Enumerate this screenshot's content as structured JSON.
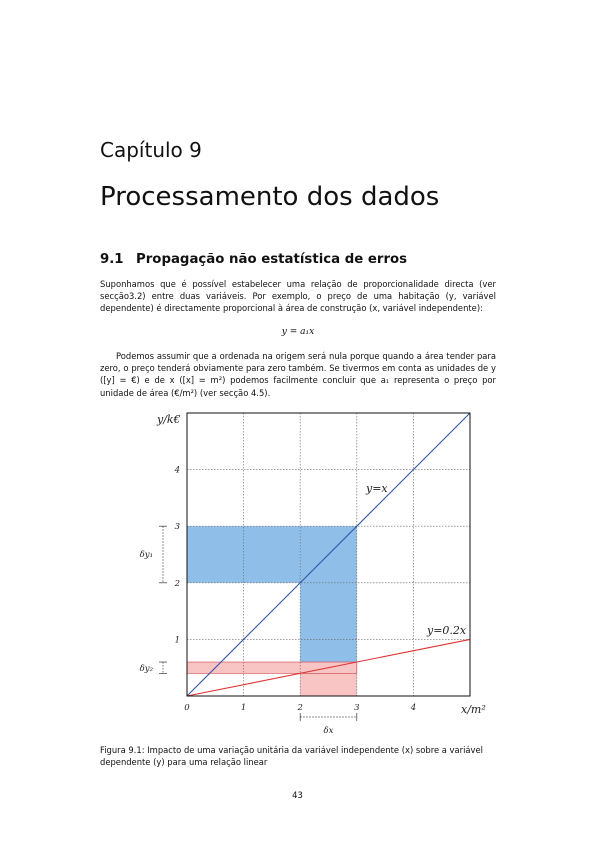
{
  "chapter": {
    "label": "Capítulo 9",
    "title": "Processamento dos dados"
  },
  "section": {
    "number": "9.1",
    "title": "Propagação não estatística de erros"
  },
  "paragraphs": {
    "p1": "Suponhamos que é possível estabelecer uma relação de proporcionalidade directa (ver secção3.2) entre duas variáveis. Por exemplo, o preço de uma habitação (y, variável dependente) é directamente proporcional à área de construção (x, variável independente):",
    "equation": "y = a₁x",
    "p2": "Podemos assumir que a ordenada na origem será nula porque quando a área tender para zero, o preço tenderá obviamente para zero também. Se tivermos em conta as unidades de y ([y] = €) e de x ([x] = m²) podemos facilmente concluir que a₁ representa o preço por unidade de área (€/m²) (ver secção 4.5)."
  },
  "figure": {
    "caption": "Figura 9.1: Impacto de uma variação unitária da variável independente (x) sobre a variável dependente (y) para uma relação linear"
  },
  "chart_data": {
    "type": "line",
    "xlabel": "x/m²",
    "ylabel": "y/k€",
    "xlim": [
      0,
      5
    ],
    "ylim": [
      0,
      5
    ],
    "x_ticks": [
      "0",
      "1",
      "2",
      "3",
      "4"
    ],
    "y_ticks": [
      "1",
      "2",
      "3",
      "4"
    ],
    "grid": true,
    "series": [
      {
        "name": "y=x",
        "slope": 1,
        "x": [
          0,
          5
        ],
        "y": [
          0,
          5
        ],
        "color": "#3355aa"
      },
      {
        "name": "y=0.2x",
        "slope": 0.2,
        "x": [
          0,
          5
        ],
        "y": [
          0,
          1
        ],
        "color": "#dd3333"
      }
    ],
    "annotations": {
      "delta_x": {
        "label": "δx",
        "from": 2,
        "to": 3
      },
      "delta_y1": {
        "label": "δy₁",
        "from": 2,
        "to": 3
      },
      "delta_y2": {
        "label": "δy₂",
        "from": 0.4,
        "to": 0.6
      }
    },
    "fills": {
      "blue": "#8fbfe8",
      "pink": "#f8c4c4"
    }
  },
  "footer": {
    "page_number": "43"
  }
}
